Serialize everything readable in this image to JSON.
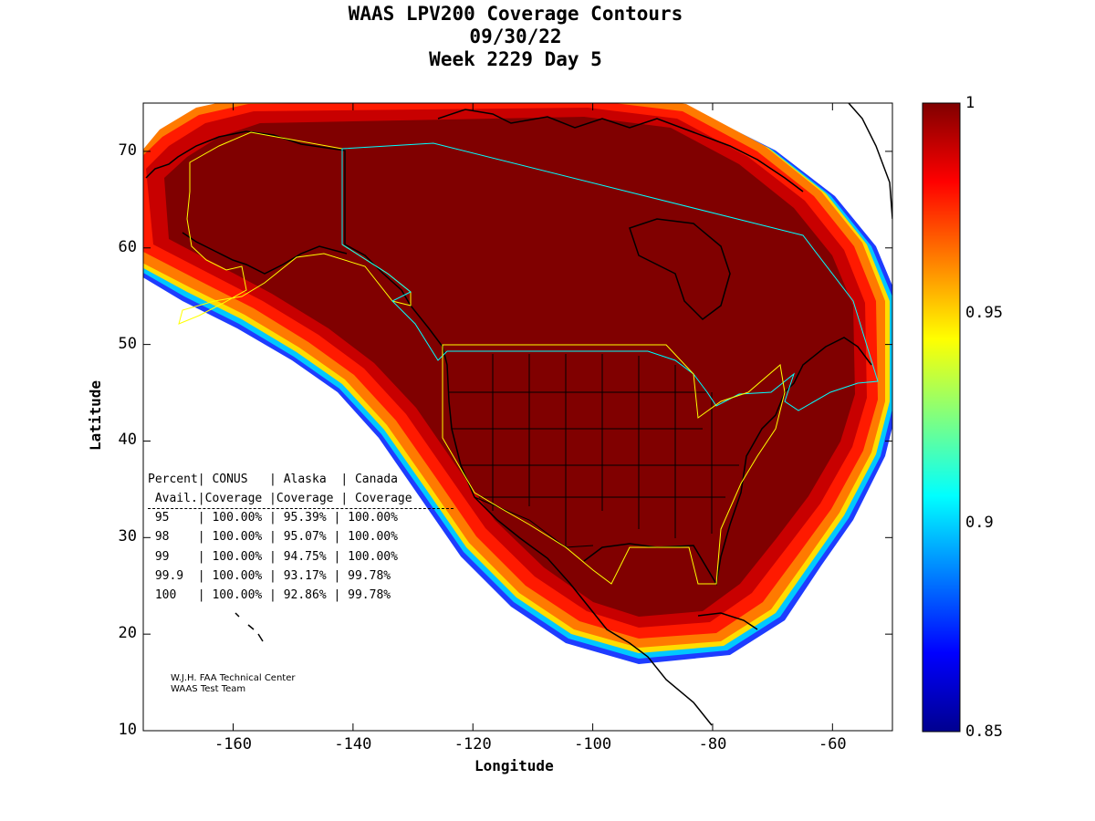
{
  "chart_data": {
    "type": "heatmap",
    "title_lines": [
      "WAAS LPV200 Coverage Contours",
      "09/30/22",
      "Week 2229 Day 5"
    ],
    "xlabel": "Longitude",
    "ylabel": "Latitude",
    "xlim": [
      -175,
      -50
    ],
    "ylim": [
      10,
      75
    ],
    "x_ticks": [
      -160,
      -140,
      -120,
      -100,
      -80,
      -60
    ],
    "y_ticks": [
      10,
      20,
      30,
      40,
      50,
      60,
      70
    ],
    "colorbar": {
      "range": [
        0.85,
        1
      ],
      "ticks": [
        "1",
        "0.95",
        "0.9",
        "0.85"
      ],
      "colormap": "jet"
    },
    "coverage_table": {
      "header1": "Percent| CONUS   | Alaska  | Canada",
      "header2": " Avail.|Coverage |Coverage | Coverage",
      "rows": [
        {
          "avail": "95",
          "conus": "100.00%",
          "alaska": "95.39%",
          "canada": "100.00%"
        },
        {
          "avail": "98",
          "conus": "100.00%",
          "alaska": "95.07%",
          "canada": "100.00%"
        },
        {
          "avail": "99",
          "conus": "100.00%",
          "alaska": "94.75%",
          "canada": "100.00%"
        },
        {
          "avail": "99.9",
          "conus": "100.00%",
          "alaska": "93.17%",
          "canada": "99.78%"
        },
        {
          "avail": "100",
          "conus": "100.00%",
          "alaska": "92.86%",
          "canada": "99.78%"
        }
      ]
    },
    "credits": [
      "W.J.H. FAA Technical Center",
      "WAAS Test Team"
    ]
  },
  "colors": {
    "coverage_full": "#800000",
    "service_boundary_us": "#ffff00",
    "service_boundary_canada": "#00ffff",
    "coastline": "#000000"
  }
}
